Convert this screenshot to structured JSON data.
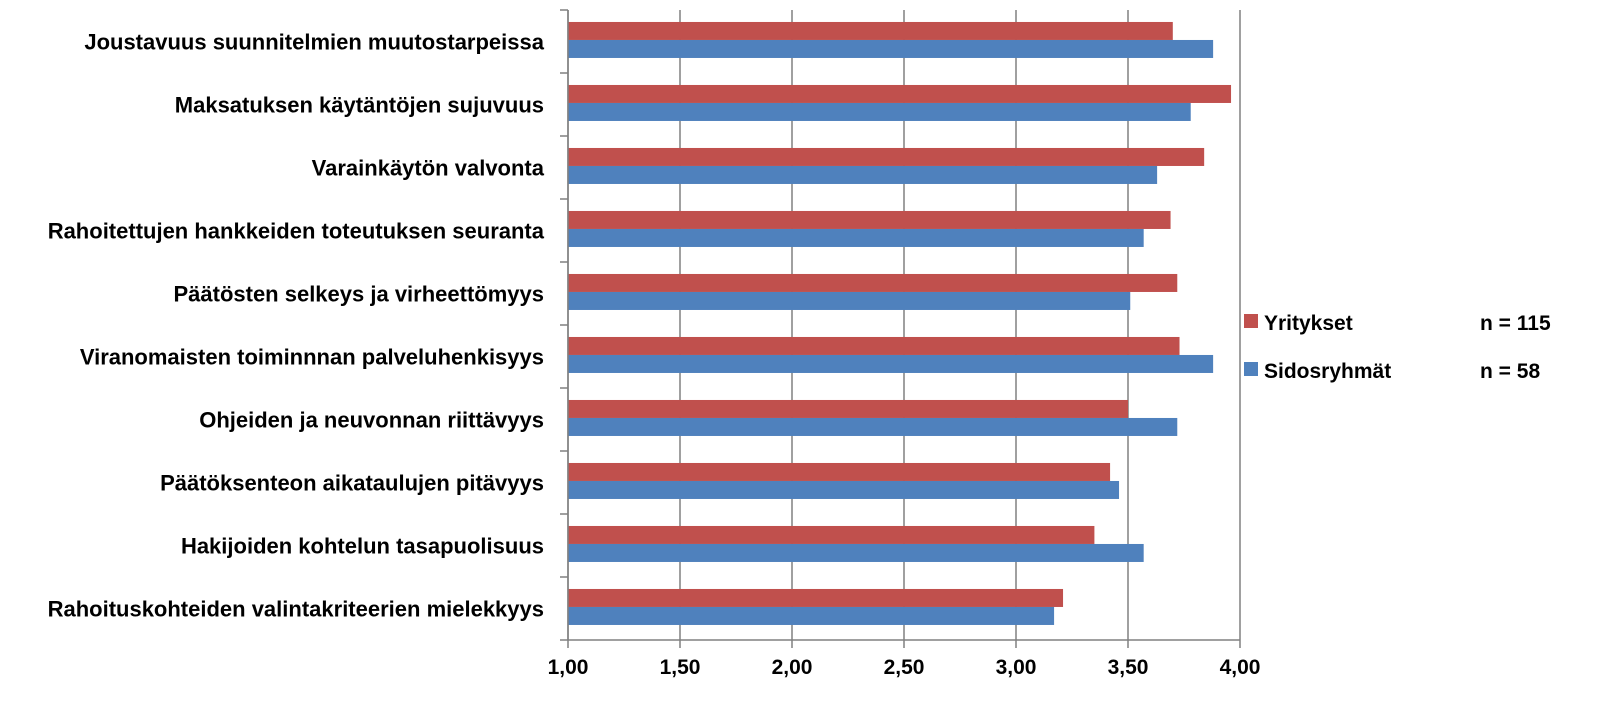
{
  "chart_data": {
    "type": "bar",
    "orientation": "horizontal",
    "categories": [
      "Joustavuus suunnitelmien muutostarpeissa",
      "Maksatuksen käytäntöjen sujuvuus",
      "Varainkäytön valvonta",
      "Rahoitettujen hankkeiden toteutuksen seuranta",
      "Päätösten selkeys ja virheettömyys",
      "Viranomaisten toiminnnan palveluhenkisyys",
      "Ohjeiden ja neuvonnan riittävyys",
      "Päätöksenteon aikataulujen pitävyys",
      "Hakijoiden kohtelun tasapuolisuus",
      "Rahoituskohteiden valintakriteerien mielekkyys"
    ],
    "series": [
      {
        "name": "Yritykset",
        "n_label": "n = 115",
        "color": "#C0504D",
        "values": [
          3.7,
          3.96,
          3.84,
          3.69,
          3.72,
          3.73,
          3.5,
          3.42,
          3.35,
          3.21
        ]
      },
      {
        "name": "Sidosryhmät",
        "n_label": "n  = 58",
        "color": "#4F81BD",
        "values": [
          3.88,
          3.78,
          3.63,
          3.57,
          3.51,
          3.88,
          3.72,
          3.46,
          3.57,
          3.17
        ]
      }
    ],
    "x_ticks": [
      "1,00",
      "1,50",
      "2,00",
      "2,50",
      "3,00",
      "3,50",
      "4,00"
    ],
    "xlim": [
      1.0,
      4.0
    ],
    "grid": "vertical",
    "legend_position": "right"
  }
}
